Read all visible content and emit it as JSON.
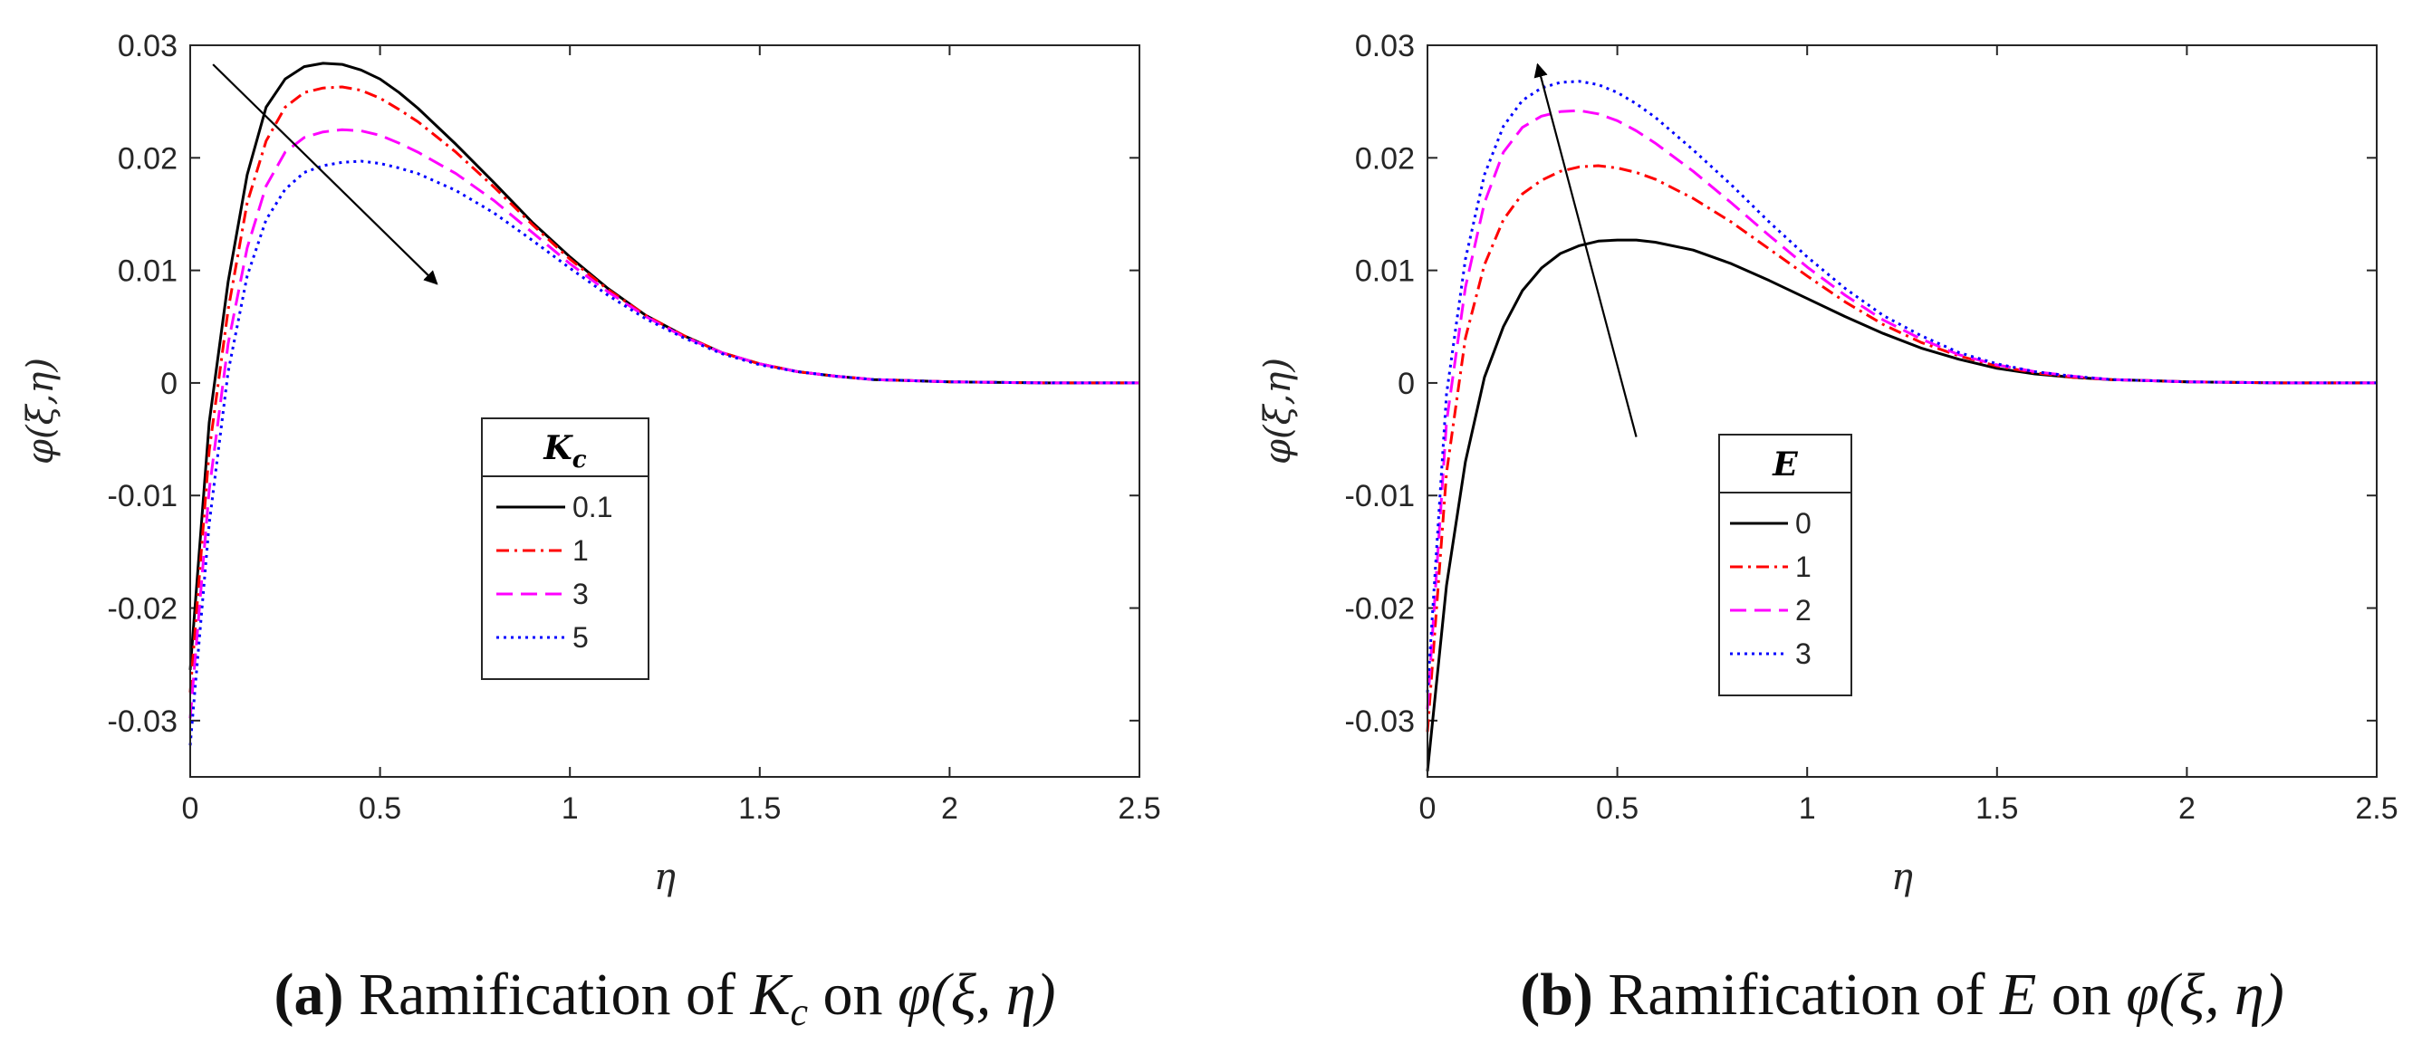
{
  "chart_data": [
    {
      "id": "a",
      "type": "line",
      "xlabel": "η",
      "ylabel": "φ(ξ,η)",
      "xlim": [
        0,
        2.5
      ],
      "ylim": [
        -0.035,
        0.03
      ],
      "xticks": [
        0,
        0.5,
        1,
        1.5,
        2,
        2.5
      ],
      "xtick_labels": [
        "0",
        "0.5",
        "1",
        "1.5",
        "2",
        "2.5"
      ],
      "yticks": [
        -0.03,
        -0.02,
        -0.01,
        0,
        0.01,
        0.02,
        0.03
      ],
      "ytick_labels": [
        "-0.03",
        "-0.02",
        "-0.01",
        "0",
        "0.01",
        "0.02",
        "0.03"
      ],
      "grid": false,
      "legend": {
        "title": "K_c",
        "title_main": "K",
        "title_sub": "c",
        "position": "center"
      },
      "annotation": {
        "type": "arrow",
        "from": [
          0.06,
          0.0283
        ],
        "to": [
          0.65,
          0.0088
        ]
      },
      "caption": {
        "tag": "(a)",
        "before": " Ramification of ",
        "math": "K",
        "math_sub": "c",
        "after": " on ",
        "func": "φ(ξ, η)"
      },
      "series": [
        {
          "name": "0.1",
          "color": "#000000",
          "dash": "",
          "x": [
            0,
            0.05,
            0.1,
            0.15,
            0.2,
            0.25,
            0.3,
            0.35,
            0.4,
            0.45,
            0.5,
            0.55,
            0.6,
            0.7,
            0.8,
            0.9,
            1.0,
            1.1,
            1.2,
            1.3,
            1.4,
            1.5,
            1.6,
            1.7,
            1.8,
            1.9,
            2.0,
            2.25,
            2.5
          ],
          "values": [
            -0.0255,
            -0.0035,
            0.009,
            0.0185,
            0.0245,
            0.027,
            0.0281,
            0.0284,
            0.0283,
            0.0278,
            0.027,
            0.0258,
            0.0244,
            0.0212,
            0.0178,
            0.0143,
            0.0112,
            0.0084,
            0.006,
            0.0042,
            0.0027,
            0.0017,
            0.001,
            0.0006,
            0.0003,
            0.0002,
            0.0001,
            0,
            0
          ]
        },
        {
          "name": "1",
          "color": "#ff0000",
          "dash": "14 6 3 6",
          "x": [
            0,
            0.05,
            0.1,
            0.15,
            0.2,
            0.25,
            0.3,
            0.35,
            0.4,
            0.45,
            0.5,
            0.55,
            0.6,
            0.7,
            0.8,
            0.9,
            1.0,
            1.1,
            1.2,
            1.3,
            1.4,
            1.5,
            1.6,
            1.7,
            1.8,
            1.9,
            2.0,
            2.25,
            2.5
          ],
          "values": [
            -0.0275,
            -0.006,
            0.0065,
            0.016,
            0.0215,
            0.0245,
            0.0258,
            0.0262,
            0.0263,
            0.026,
            0.0253,
            0.0243,
            0.0232,
            0.0205,
            0.0174,
            0.0141,
            0.011,
            0.0083,
            0.006,
            0.0042,
            0.0027,
            0.0017,
            0.001,
            0.0006,
            0.0003,
            0.0002,
            0.0001,
            0,
            0
          ]
        },
        {
          "name": "3",
          "color": "#ff00ff",
          "dash": "18 9",
          "x": [
            0,
            0.05,
            0.1,
            0.15,
            0.2,
            0.25,
            0.3,
            0.35,
            0.4,
            0.45,
            0.5,
            0.55,
            0.6,
            0.7,
            0.8,
            0.9,
            1.0,
            1.1,
            1.2,
            1.3,
            1.4,
            1.5,
            1.6,
            1.7,
            1.8,
            1.9,
            2.0,
            2.25,
            2.5
          ],
          "values": [
            -0.0298,
            -0.0095,
            0.0035,
            0.012,
            0.0175,
            0.0205,
            0.0218,
            0.0223,
            0.0225,
            0.0224,
            0.022,
            0.0213,
            0.0205,
            0.0186,
            0.0162,
            0.0134,
            0.0106,
            0.0081,
            0.0059,
            0.0041,
            0.0027,
            0.0017,
            0.001,
            0.0006,
            0.0003,
            0.0002,
            0.0001,
            0,
            0
          ]
        },
        {
          "name": "5",
          "color": "#0000ff",
          "dash": "3 5",
          "x": [
            0,
            0.05,
            0.1,
            0.15,
            0.2,
            0.25,
            0.3,
            0.35,
            0.4,
            0.45,
            0.5,
            0.55,
            0.6,
            0.7,
            0.8,
            0.9,
            1.0,
            1.1,
            1.2,
            1.3,
            1.4,
            1.5,
            1.6,
            1.7,
            1.8,
            1.9,
            2.0,
            2.25,
            2.5
          ],
          "values": [
            -0.0322,
            -0.0125,
            0.001,
            0.0095,
            0.0145,
            0.0172,
            0.0187,
            0.0193,
            0.0196,
            0.0197,
            0.0195,
            0.0191,
            0.0186,
            0.0171,
            0.0151,
            0.0127,
            0.0102,
            0.0078,
            0.0057,
            0.004,
            0.0026,
            0.0016,
            0.001,
            0.0006,
            0.0003,
            0.0002,
            0.0001,
            0,
            0
          ]
        }
      ]
    },
    {
      "id": "b",
      "type": "line",
      "xlabel": "η",
      "ylabel": "φ(ξ,η)",
      "xlim": [
        0,
        2.5
      ],
      "ylim": [
        -0.035,
        0.03
      ],
      "xticks": [
        0,
        0.5,
        1,
        1.5,
        2,
        2.5
      ],
      "xtick_labels": [
        "0",
        "0.5",
        "1",
        "1.5",
        "2",
        "2.5"
      ],
      "yticks": [
        -0.03,
        -0.02,
        -0.01,
        0,
        0.01,
        0.02,
        0.03
      ],
      "ytick_labels": [
        "-0.03",
        "-0.02",
        "-0.01",
        "0",
        "0.01",
        "0.02",
        "0.03"
      ],
      "grid": false,
      "legend": {
        "title": "E",
        "title_main": "E",
        "title_sub": "",
        "position": "center-left"
      },
      "annotation": {
        "type": "arrow",
        "from": [
          0.55,
          -0.0048
        ],
        "to": [
          0.29,
          0.0283
        ]
      },
      "caption": {
        "tag": "(b)",
        "before": " Ramification of ",
        "math": "E",
        "math_sub": "",
        "after": " on ",
        "func": "φ(ξ, η)"
      },
      "series": [
        {
          "name": "0",
          "color": "#000000",
          "dash": "",
          "x": [
            0,
            0.05,
            0.1,
            0.15,
            0.2,
            0.25,
            0.3,
            0.35,
            0.4,
            0.45,
            0.5,
            0.55,
            0.6,
            0.7,
            0.8,
            0.9,
            1.0,
            1.1,
            1.2,
            1.3,
            1.4,
            1.5,
            1.6,
            1.7,
            1.8,
            1.9,
            2.0,
            2.25,
            2.5
          ],
          "values": [
            -0.0345,
            -0.018,
            -0.007,
            0.0005,
            0.005,
            0.0082,
            0.0102,
            0.0115,
            0.0122,
            0.0126,
            0.0127,
            0.0127,
            0.0125,
            0.0118,
            0.0106,
            0.0091,
            0.0075,
            0.0059,
            0.0044,
            0.0031,
            0.0021,
            0.0013,
            0.0008,
            0.0005,
            0.0003,
            0.0002,
            0.0001,
            0,
            0
          ]
        },
        {
          "name": "1",
          "color": "#ff0000",
          "dash": "14 6 3 6",
          "x": [
            0,
            0.05,
            0.1,
            0.15,
            0.2,
            0.25,
            0.3,
            0.35,
            0.4,
            0.45,
            0.5,
            0.55,
            0.6,
            0.7,
            0.8,
            0.9,
            1.0,
            1.1,
            1.2,
            1.3,
            1.4,
            1.5,
            1.6,
            1.7,
            1.8,
            1.9,
            2.0,
            2.25,
            2.5
          ],
          "values": [
            -0.031,
            -0.008,
            0.004,
            0.0105,
            0.0145,
            0.0168,
            0.018,
            0.0188,
            0.0192,
            0.0193,
            0.0191,
            0.0187,
            0.0181,
            0.0164,
            0.0143,
            0.0119,
            0.0095,
            0.0072,
            0.0052,
            0.0036,
            0.0024,
            0.0015,
            0.0009,
            0.0005,
            0.0003,
            0.0002,
            0.0001,
            0,
            0
          ]
        },
        {
          "name": "2",
          "color": "#ff00ff",
          "dash": "18 9",
          "x": [
            0,
            0.05,
            0.1,
            0.15,
            0.2,
            0.25,
            0.3,
            0.35,
            0.4,
            0.45,
            0.5,
            0.55,
            0.6,
            0.7,
            0.8,
            0.9,
            1.0,
            1.1,
            1.2,
            1.3,
            1.4,
            1.5,
            1.6,
            1.7,
            1.8,
            1.9,
            2.0,
            2.25,
            2.5
          ],
          "values": [
            -0.029,
            -0.0035,
            0.0085,
            0.016,
            0.0205,
            0.0227,
            0.0237,
            0.0241,
            0.0242,
            0.0239,
            0.0233,
            0.0224,
            0.0213,
            0.0188,
            0.016,
            0.0131,
            0.0103,
            0.0078,
            0.0056,
            0.0039,
            0.0025,
            0.0016,
            0.001,
            0.0006,
            0.0003,
            0.0002,
            0.0001,
            0,
            0
          ]
        },
        {
          "name": "3",
          "color": "#0000ff",
          "dash": "3 5",
          "x": [
            0,
            0.05,
            0.1,
            0.15,
            0.2,
            0.25,
            0.3,
            0.35,
            0.4,
            0.45,
            0.5,
            0.55,
            0.6,
            0.7,
            0.8,
            0.9,
            1.0,
            1.1,
            1.2,
            1.3,
            1.4,
            1.5,
            1.6,
            1.7,
            1.8,
            1.9,
            2.0,
            2.25,
            2.5
          ],
          "values": [
            -0.0275,
            -0.001,
            0.011,
            0.0185,
            0.0228,
            0.0251,
            0.0262,
            0.0267,
            0.0268,
            0.0265,
            0.0258,
            0.0248,
            0.0236,
            0.0207,
            0.0176,
            0.0143,
            0.0112,
            0.0084,
            0.006,
            0.0042,
            0.0027,
            0.0017,
            0.001,
            0.0006,
            0.0003,
            0.0002,
            0.0001,
            0,
            0
          ]
        }
      ]
    }
  ]
}
